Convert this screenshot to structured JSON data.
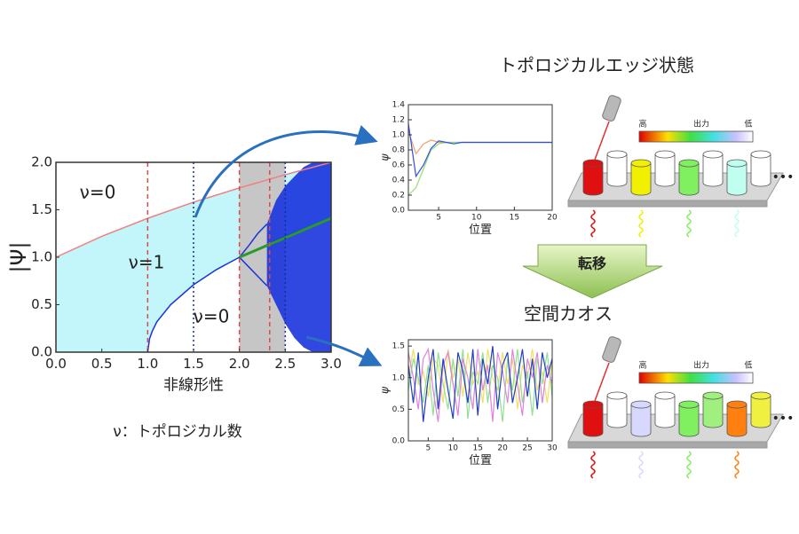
{
  "chart_data": [
    {
      "type": "line",
      "xlabel": "非線形性",
      "ylabel": "|Ψ|",
      "xlim": [
        0,
        3
      ],
      "ylim": [
        0,
        2
      ],
      "xticks": [
        {
          "value": 0,
          "label": "0.0"
        },
        {
          "value": 0.5,
          "label": "0.5"
        },
        {
          "value": 1,
          "label": "1.0"
        },
        {
          "value": 1.5,
          "label": "1.5"
        },
        {
          "value": 2,
          "label": "2.0"
        },
        {
          "value": 2.5,
          "label": "2.5"
        },
        {
          "value": 3,
          "label": "3.0"
        }
      ],
      "yticks": [
        {
          "value": 0,
          "label": "0.0"
        },
        {
          "value": 0.5,
          "label": "0.5"
        },
        {
          "value": 1,
          "label": "1.0"
        },
        {
          "value": 1.5,
          "label": "1.5"
        },
        {
          "value": 2,
          "label": "2.0"
        }
      ],
      "annotations": [
        "ν=0",
        "ν=1",
        "ν=0"
      ],
      "shaded_region": {
        "x": [
          2.0,
          2.5
        ],
        "color": "#c6c6c6"
      },
      "vlines": [
        {
          "x": 1.0,
          "color": "#e04848",
          "dash": "dashed"
        },
        {
          "x": 1.5,
          "color": "#1030a0",
          "dash": "dotted"
        },
        {
          "x": 2.0,
          "color": "#e04848",
          "dash": "dashed"
        },
        {
          "x": 2.33,
          "color": "#e04848",
          "dash": "dashed"
        },
        {
          "x": 2.5,
          "color": "#1030a0",
          "dash": "dotted"
        }
      ],
      "series": [
        {
          "color": "#f08080",
          "fill": "#c2f6fb",
          "x": [
            0,
            0.5,
            1,
            1.5,
            2,
            2.5,
            3
          ],
          "values": [
            1,
            1.22,
            1.41,
            1.58,
            1.73,
            1.87,
            2
          ]
        },
        {
          "color": "#1a33dd",
          "fill": "#ffffff",
          "x": [
            1,
            1.02,
            1.05,
            1.1,
            1.25,
            1.5,
            1.75,
            2,
            2.5,
            3
          ],
          "values": [
            0,
            0.14,
            0.22,
            0.32,
            0.5,
            0.71,
            0.87,
            1,
            1.22,
            1.41
          ]
        },
        {
          "color": "#1a33dd",
          "x": [
            2.0,
            2.1,
            2.2,
            2.3
          ],
          "values": [
            1.0,
            1.12,
            1.25,
            1.35
          ]
        },
        {
          "color": "#1a33dd",
          "x": [
            2.0,
            2.1,
            2.2,
            2.3
          ],
          "values": [
            1.0,
            0.9,
            0.8,
            0.7
          ]
        },
        {
          "color": "#1a33dd",
          "kind": "area",
          "x": [
            2.3,
            2.4,
            2.5,
            2.6,
            2.7,
            2.8,
            3.0
          ],
          "values": [
            1.35,
            1.6,
            1.75,
            1.85,
            1.95,
            2.0,
            2.0
          ],
          "lower": [
            0.7,
            0.5,
            0.3,
            0.15,
            0.05,
            0.0,
            0.0
          ]
        },
        {
          "color": "#2a9a2a",
          "width": 3,
          "x": [
            2,
            3
          ],
          "values": [
            1,
            1.41
          ]
        }
      ]
    },
    {
      "type": "line",
      "xlabel": "位置",
      "ylabel": "ψ",
      "xlim": [
        1,
        20
      ],
      "ylim": [
        0,
        1.4
      ],
      "xticks": [
        5,
        10,
        15,
        20
      ],
      "yticks": [
        {
          "value": 0,
          "label": "0.0"
        },
        {
          "value": 0.2,
          "label": "0.2"
        },
        {
          "value": 0.4,
          "label": "0.4"
        },
        {
          "value": 0.6,
          "label": "0.6"
        },
        {
          "value": 0.8,
          "label": "0.8"
        },
        {
          "value": 1,
          "label": "1.0"
        },
        {
          "value": 1.2,
          "label": "1.2"
        },
        {
          "value": 1.4,
          "label": "1.4"
        }
      ],
      "series": [
        {
          "color": "#f0a070",
          "x": [
            1,
            2,
            3,
            4,
            5,
            6,
            7,
            8,
            9,
            10,
            11,
            12,
            13,
            14,
            15,
            16,
            17,
            18,
            19,
            20
          ],
          "values": [
            1.05,
            0.75,
            0.88,
            0.93,
            0.9,
            0.9,
            0.9,
            0.9,
            0.9,
            0.9,
            0.9,
            0.9,
            0.9,
            0.9,
            0.9,
            0.9,
            0.9,
            0.9,
            0.9,
            0.9
          ]
        },
        {
          "color": "#90e070",
          "x": [
            1,
            2,
            3,
            4,
            5,
            6,
            7,
            8,
            9,
            10,
            11,
            12,
            13,
            14,
            15,
            16,
            17,
            18,
            19,
            20
          ],
          "values": [
            0.2,
            0.3,
            0.55,
            0.8,
            0.88,
            0.9,
            0.9,
            0.9,
            0.9,
            0.9,
            0.9,
            0.9,
            0.9,
            0.9,
            0.9,
            0.9,
            0.9,
            0.9,
            0.9,
            0.9
          ]
        },
        {
          "color": "#3050e0",
          "x": [
            1,
            2,
            3,
            4,
            5,
            6,
            7,
            8,
            9,
            10,
            11,
            12,
            13,
            14,
            15,
            16,
            17,
            18,
            19,
            20
          ],
          "values": [
            1.15,
            0.45,
            0.6,
            0.82,
            0.92,
            0.9,
            0.88,
            0.9,
            0.9,
            0.9,
            0.9,
            0.9,
            0.9,
            0.9,
            0.9,
            0.9,
            0.9,
            0.9,
            0.9,
            0.9
          ]
        }
      ]
    },
    {
      "type": "line",
      "xlabel": "位置",
      "ylabel": "ψ",
      "xlim": [
        1,
        30
      ],
      "ylim": [
        0,
        1.6
      ],
      "xticks": [
        5,
        10,
        15,
        20,
        25,
        30
      ],
      "yticks": [
        {
          "value": 0,
          "label": "0.0"
        },
        {
          "value": 0.5,
          "label": "0.5"
        },
        {
          "value": 1,
          "label": "1.0"
        },
        {
          "value": 1.5,
          "label": "1.5"
        }
      ],
      "series": [
        {
          "color": "#f0e060",
          "x": [
            1,
            2,
            3,
            4,
            5,
            6,
            7,
            8,
            9,
            10,
            11,
            12,
            13,
            14,
            15,
            16,
            17,
            18,
            19,
            20,
            21,
            22,
            23,
            24,
            25,
            26,
            27,
            28,
            29,
            30
          ],
          "values": [
            1.0,
            1.45,
            0.9,
            1.1,
            0.7,
            1.3,
            1.2,
            0.6,
            1.45,
            1.0,
            1.3,
            0.7,
            1.4,
            0.9,
            1.1,
            0.6,
            1.45,
            1.0,
            0.8,
            1.4,
            0.9,
            1.3,
            0.5,
            1.2,
            1.0,
            1.45,
            0.8,
            1.1,
            0.6,
            1.3
          ]
        },
        {
          "color": "#90e090",
          "x": [
            1,
            2,
            3,
            4,
            5,
            6,
            7,
            8,
            9,
            10,
            11,
            12,
            13,
            14,
            15,
            16,
            17,
            18,
            19,
            20,
            21,
            22,
            23,
            24,
            25,
            26,
            27,
            28,
            29,
            30
          ],
          "values": [
            0.8,
            1.3,
            1.0,
            0.6,
            1.2,
            0.4,
            1.4,
            0.9,
            0.5,
            1.3,
            0.7,
            1.45,
            0.35,
            1.1,
            0.9,
            1.4,
            0.6,
            1.2,
            1.0,
            0.3,
            1.3,
            0.8,
            1.45,
            0.6,
            1.1,
            0.4,
            1.3,
            0.9,
            1.4,
            0.7
          ]
        },
        {
          "color": "#e080e0",
          "x": [
            1,
            2,
            3,
            4,
            5,
            6,
            7,
            8,
            9,
            10,
            11,
            12,
            13,
            14,
            15,
            16,
            17,
            18,
            19,
            20,
            21,
            22,
            23,
            24,
            25,
            26,
            27,
            28,
            29,
            30
          ],
          "values": [
            1.4,
            1.0,
            0.5,
            1.3,
            1.45,
            0.8,
            0.3,
            1.2,
            1.4,
            0.9,
            0.4,
            1.3,
            1.0,
            0.5,
            1.45,
            0.8,
            1.2,
            0.3,
            1.4,
            1.1,
            0.6,
            1.45,
            0.9,
            0.4,
            1.3,
            1.0,
            1.4,
            0.6,
            1.2,
            0.9
          ]
        },
        {
          "color": "#2040c0",
          "x": [
            1,
            2,
            3,
            4,
            5,
            6,
            7,
            8,
            9,
            10,
            11,
            12,
            13,
            14,
            15,
            16,
            17,
            18,
            19,
            20,
            21,
            22,
            23,
            24,
            25,
            26,
            27,
            28,
            29,
            30
          ],
          "values": [
            1.2,
            0.6,
            1.4,
            0.3,
            1.0,
            1.45,
            0.5,
            1.3,
            0.8,
            0.35,
            1.4,
            1.1,
            0.6,
            1.45,
            0.4,
            1.3,
            0.9,
            1.5,
            0.5,
            1.2,
            1.4,
            0.6,
            1.0,
            1.45,
            0.7,
            1.3,
            0.5,
            1.4,
            1.0,
            1.3
          ]
        }
      ]
    }
  ],
  "diagram": {
    "legend_note": "ν：トポロジカル数",
    "transition": "転移",
    "panels": [
      {
        "title": "トポロジカルエッジ状態",
        "colorbar": [
          "高",
          "出力",
          "低"
        ],
        "more": "•••",
        "cylinders": [
          "#e01010",
          "#ffffff",
          "#f0f000",
          "#ffffff",
          "#80f060",
          "#ffffff",
          "#c0fff0",
          "#ffffff"
        ]
      },
      {
        "title": "空間カオス",
        "colorbar": [
          "高",
          "出力",
          "低"
        ],
        "more": "•••",
        "cylinders": [
          "#e01010",
          "#ffffff",
          "#d8d8ff",
          "#ffffff",
          "#80f060",
          "#a0f080",
          "#ff8010",
          "#f0f040"
        ]
      }
    ]
  }
}
